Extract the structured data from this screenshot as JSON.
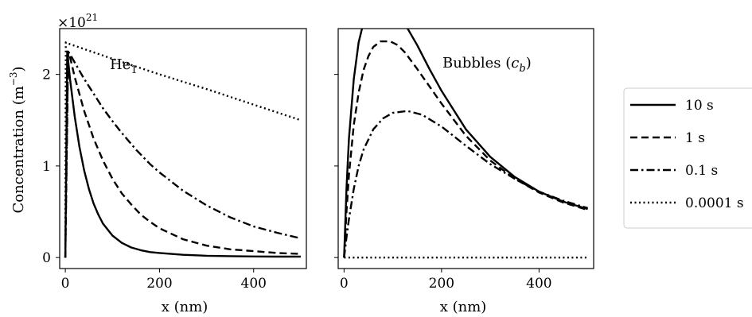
{
  "chart_data": [
    {
      "type": "line",
      "panel_label": "He",
      "panel_label_sub": "1",
      "xlabel": "x (nm)",
      "ylabel_main": "Concentration (m",
      "ylabel_sup": "−3",
      "ylabel_close": ")",
      "multiplier_base": "×10",
      "multiplier_exp": "21",
      "xlim": [
        -12,
        512
      ],
      "ylim": [
        -0.12,
        2.5
      ],
      "xticks": [
        0,
        200,
        400
      ],
      "xtick_labels": [
        "0",
        "200",
        "400"
      ],
      "yticks": [
        0,
        1,
        2
      ],
      "ytick_labels": [
        "0",
        "1",
        "2"
      ],
      "grid": false,
      "series": [
        {
          "name": "10 s",
          "style": "solid",
          "x": [
            0,
            4,
            10,
            20,
            30,
            40,
            50,
            60,
            70,
            80,
            100,
            120,
            140,
            160,
            180,
            200,
            250,
            300,
            350,
            400,
            450,
            500
          ],
          "y": [
            0,
            2.25,
            1.95,
            1.54,
            1.21,
            0.95,
            0.75,
            0.59,
            0.47,
            0.37,
            0.24,
            0.16,
            0.11,
            0.08,
            0.06,
            0.05,
            0.03,
            0.02,
            0.015,
            0.012,
            0.01,
            0.01
          ]
        },
        {
          "name": "1 s",
          "style": "dashed",
          "x": [
            0,
            6,
            10,
            20,
            40,
            60,
            80,
            100,
            120,
            140,
            160,
            180,
            200,
            250,
            300,
            350,
            400,
            450,
            500
          ],
          "y": [
            0,
            2.25,
            2.19,
            1.97,
            1.6,
            1.3,
            1.06,
            0.86,
            0.7,
            0.58,
            0.47,
            0.39,
            0.32,
            0.2,
            0.13,
            0.09,
            0.07,
            0.05,
            0.04
          ]
        },
        {
          "name": "0.1 s",
          "style": "dashdot",
          "x": [
            0,
            6,
            10,
            20,
            40,
            60,
            80,
            100,
            120,
            150,
            180,
            200,
            250,
            300,
            350,
            400,
            450,
            500
          ],
          "y": [
            0,
            2.25,
            2.22,
            2.13,
            1.95,
            1.79,
            1.63,
            1.49,
            1.36,
            1.18,
            1.02,
            0.93,
            0.73,
            0.57,
            0.44,
            0.34,
            0.27,
            0.21
          ]
        },
        {
          "name": "0.0001 s",
          "style": "dotted",
          "x": [
            0,
            1,
            10,
            100,
            200,
            300,
            400,
            500
          ],
          "y": [
            0,
            2.35,
            2.33,
            2.17,
            2.0,
            1.84,
            1.67,
            1.5
          ]
        }
      ]
    },
    {
      "type": "line",
      "panel_label": "Bubbles (",
      "panel_label_var": "c",
      "panel_label_sub": "b",
      "panel_label_close": ")",
      "xlabel": "x (nm)",
      "xlim": [
        -12,
        512
      ],
      "ylim": [
        -0.12,
        2.5
      ],
      "xticks": [
        0,
        200,
        400
      ],
      "xtick_labels": [
        "0",
        "200",
        "400"
      ],
      "yticks": [
        0,
        1,
        2
      ],
      "grid": false,
      "series": [
        {
          "name": "10 s",
          "style": "solid",
          "x": [
            0,
            5,
            10,
            20,
            30,
            40,
            50,
            60,
            75,
            90,
            100,
            125,
            150,
            175,
            200,
            250,
            300,
            350,
            400,
            450,
            500
          ],
          "y": [
            0,
            0.75,
            1.3,
            1.95,
            2.35,
            2.57,
            2.7,
            2.77,
            2.8,
            2.77,
            2.72,
            2.55,
            2.32,
            2.06,
            1.82,
            1.4,
            1.1,
            0.88,
            0.72,
            0.61,
            0.53
          ]
        },
        {
          "name": "1 s",
          "style": "dashed",
          "x": [
            0,
            5,
            10,
            20,
            30,
            40,
            50,
            60,
            75,
            95,
            110,
            125,
            150,
            175,
            200,
            250,
            300,
            350,
            400,
            450,
            500
          ],
          "y": [
            0,
            0.5,
            0.9,
            1.45,
            1.8,
            2.05,
            2.2,
            2.3,
            2.36,
            2.36,
            2.32,
            2.24,
            2.06,
            1.87,
            1.68,
            1.33,
            1.06,
            0.86,
            0.71,
            0.6,
            0.52
          ]
        },
        {
          "name": "0.1 s",
          "style": "dashdot",
          "x": [
            0,
            5,
            10,
            20,
            30,
            40,
            60,
            80,
            100,
            130,
            160,
            200,
            250,
            300,
            350,
            400,
            450,
            500
          ],
          "y": [
            0,
            0.22,
            0.42,
            0.75,
            1.0,
            1.18,
            1.4,
            1.52,
            1.58,
            1.6,
            1.56,
            1.43,
            1.22,
            1.02,
            0.86,
            0.72,
            0.62,
            0.54
          ]
        },
        {
          "name": "0.0001 s",
          "style": "dotted",
          "x": [
            0,
            500
          ],
          "y": [
            0,
            0
          ]
        }
      ]
    }
  ],
  "legend": {
    "placement": "right",
    "entries": [
      {
        "label": "10 s",
        "style": "solid"
      },
      {
        "label": "1 s",
        "style": "dashed"
      },
      {
        "label": "0.1 s",
        "style": "dashdot"
      },
      {
        "label": "0.0001 s",
        "style": "dotted"
      }
    ]
  }
}
